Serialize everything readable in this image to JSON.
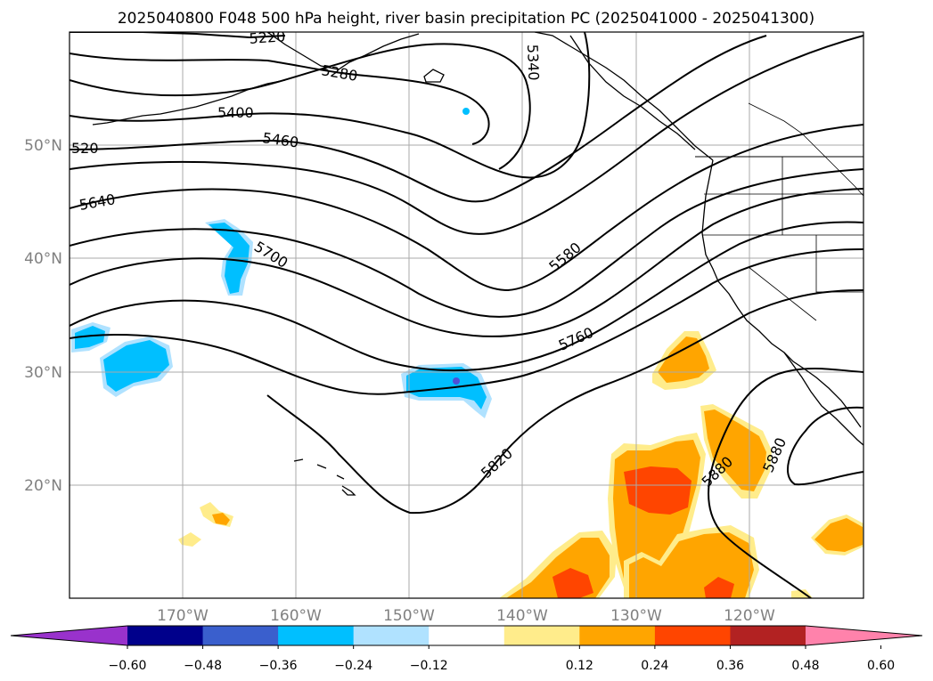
{
  "title": "2025040800 F048 500 hPa height, river basin precipitation PC (2025041000 - 2025041300)",
  "map": {
    "lon_ticks": [
      "170°W",
      "160°W",
      "150°W",
      "140°W",
      "130°W",
      "120°W"
    ],
    "lat_ticks": [
      "50°N",
      "40°N",
      "30°N",
      "20°N"
    ],
    "contour_labels": [
      "5220",
      "5280",
      "5340",
      "5400",
      "5460",
      "520",
      "5640",
      "5700",
      "5580",
      "5760",
      "5820",
      "5880",
      "5880"
    ]
  },
  "colorbar": {
    "tick_labels": [
      "−0.60",
      "−0.48",
      "−0.36",
      "−0.24",
      "−0.12",
      "0.12",
      "0.24",
      "0.36",
      "0.48",
      "0.60"
    ],
    "colors": [
      "#9932cc",
      "#00008b",
      "#3a5fcd",
      "#00bfff",
      "#b0e2ff",
      "#ffffff",
      "#ffec8b",
      "#ffa500",
      "#ff4500",
      "#b22222",
      "#ff82ab"
    ]
  },
  "styles": {
    "negative_fill": "#00bfff",
    "negative_fill_light": "#b0e2ff",
    "negative_core": "#4f4fd6",
    "positive_light": "#ffec8b",
    "positive_mid": "#ffa500",
    "positive_strong": "#ff4500",
    "grid_color": "#aaaaaa",
    "contour_color": "#000000"
  }
}
